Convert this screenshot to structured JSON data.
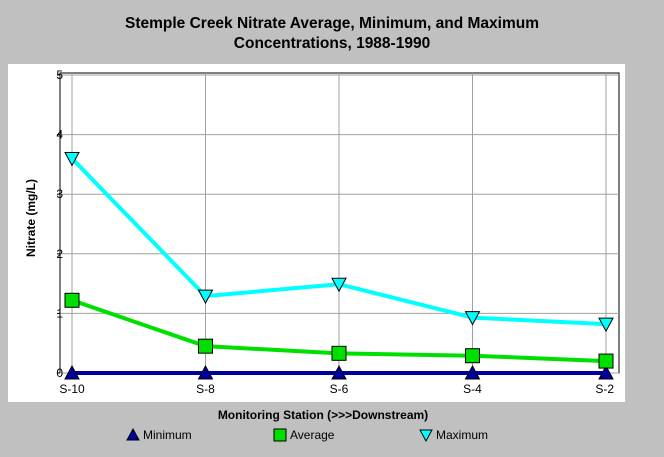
{
  "chart_data": {
    "type": "line",
    "title_line1": "Stemple Creek Nitrate Average, Minimum, and Maximum",
    "title_line2": "Concentrations, 1988-1990",
    "xlabel": "Monitoring Station (>>>Downstream)",
    "ylabel": "Nitrate (mg/L)",
    "categories": [
      "S-10",
      "S-8",
      "S-6",
      "S-4",
      "S-2"
    ],
    "ylim": [
      0,
      5
    ],
    "yticks": [
      "0",
      "1",
      "2",
      "3",
      "4",
      "5"
    ],
    "grid": true,
    "legend_position": "bottom",
    "series": [
      {
        "name": "Minimum",
        "color": "#0000a0",
        "marker": "triangle-up",
        "values": [
          0,
          0,
          0,
          0,
          0
        ]
      },
      {
        "name": "Average",
        "color": "#00e000",
        "marker": "square",
        "values": [
          1.22,
          0.45,
          0.33,
          0.29,
          0.2
        ]
      },
      {
        "name": "Maximum",
        "color": "#00ffff",
        "marker": "triangle-down",
        "values": [
          3.6,
          1.29,
          1.49,
          0.93,
          0.82
        ]
      }
    ]
  }
}
